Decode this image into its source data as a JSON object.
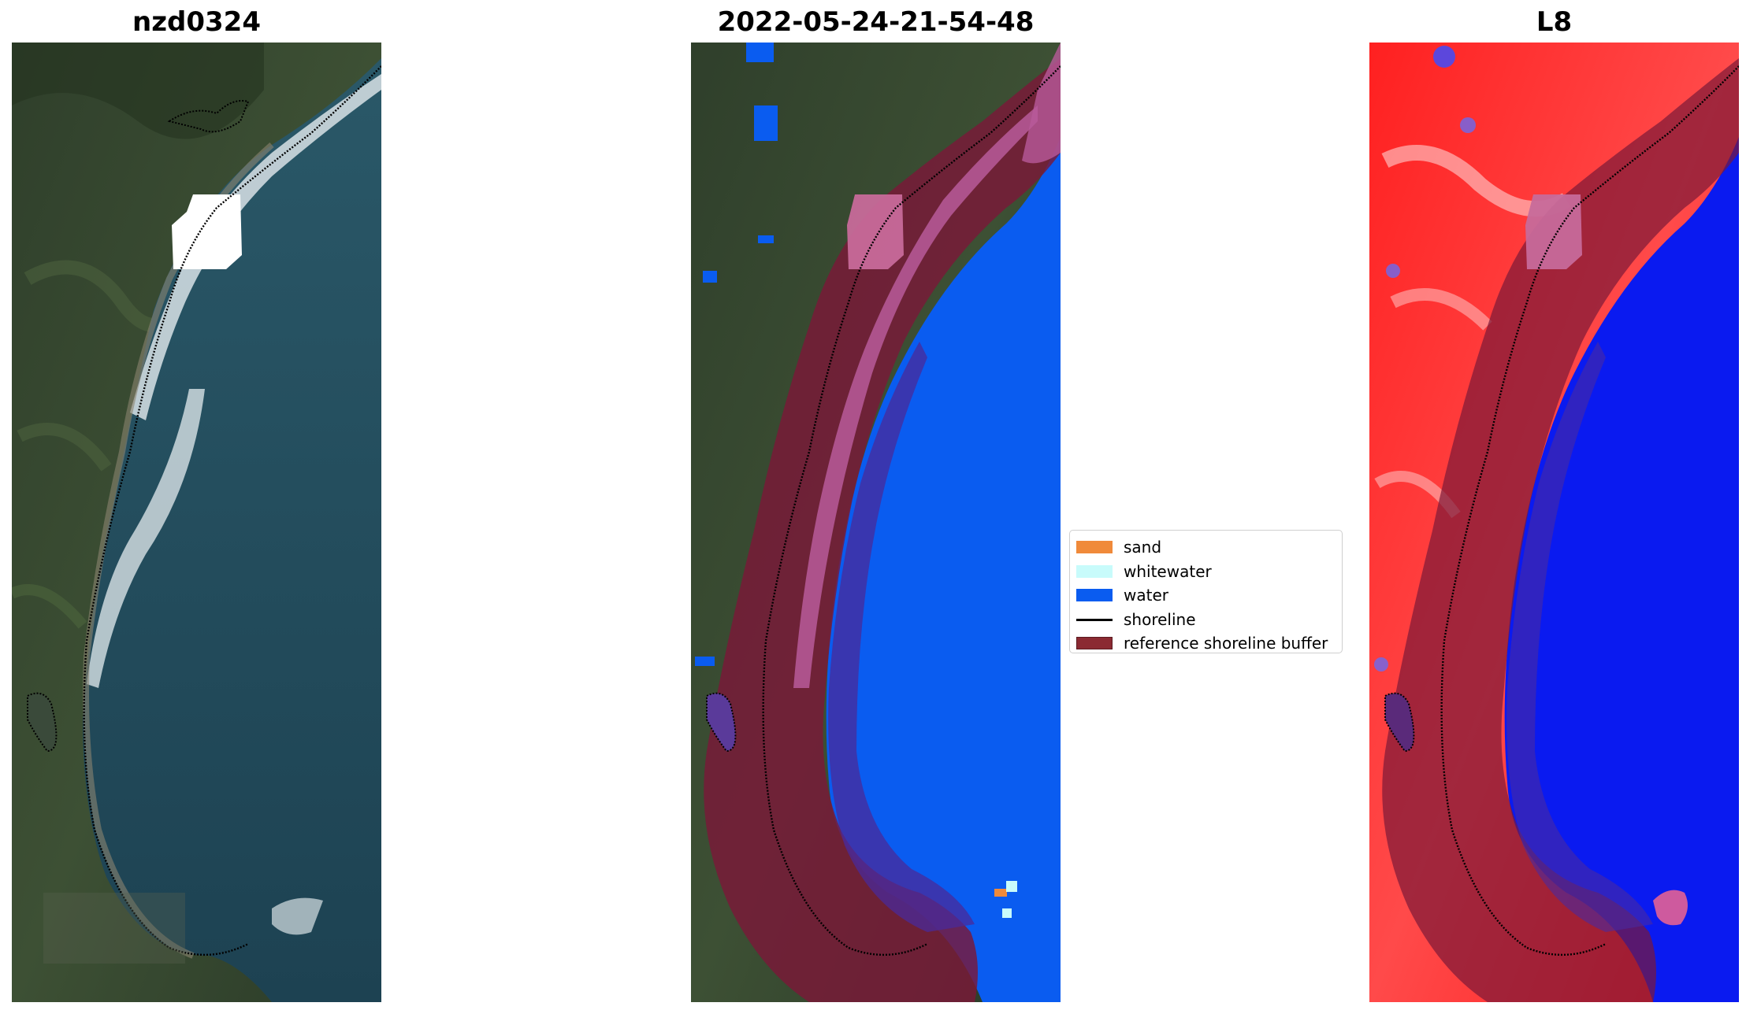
{
  "panels": [
    {
      "title": "nzd0324"
    },
    {
      "title": "2022-05-24-21-54-48"
    },
    {
      "title": "L8"
    }
  ],
  "legend": {
    "items": [
      {
        "label": "sand",
        "color": "#f08a3a",
        "kind": "patch"
      },
      {
        "label": "whitewater",
        "color": "#c8fbfb",
        "kind": "patch"
      },
      {
        "label": "water",
        "color": "#0a5cf0",
        "kind": "patch"
      },
      {
        "label": "shoreline",
        "color": "#000000",
        "kind": "line"
      },
      {
        "label": "reference shoreline buffer",
        "color": "#8b2a32",
        "kind": "patch"
      }
    ]
  },
  "colors": {
    "land_dark": "#2c3c2a",
    "land_mid": "#44583a",
    "sea": "#1f4a5a",
    "surf": "#d9e4e8",
    "buffer": "#7a1838",
    "water_class": "#0a5cf0",
    "index_high": "#ff1a1a",
    "index_low": "#0a1af0"
  }
}
